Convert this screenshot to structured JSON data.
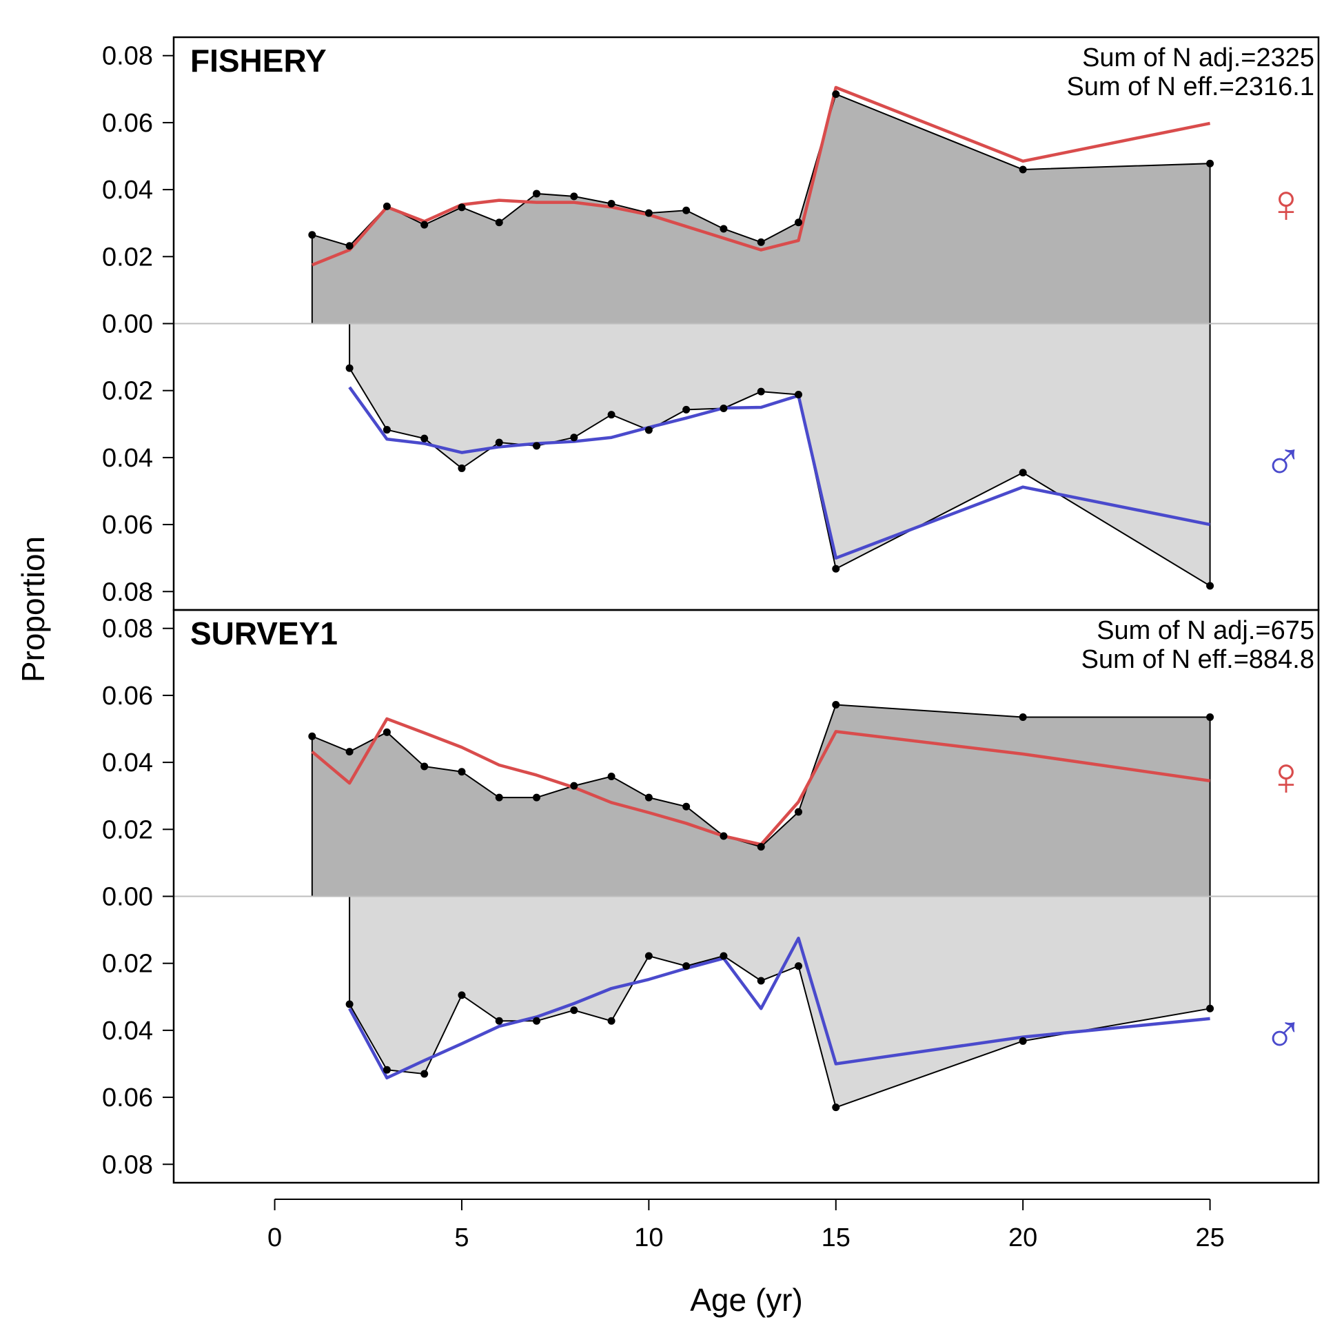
{
  "chart_data": {
    "type": "area",
    "xlabel": "Age (yr)",
    "ylabel": "Proportion",
    "xlim": [
      -2.7,
      27.9
    ],
    "x_ticks": [
      0,
      5,
      10,
      15,
      20,
      25
    ],
    "x_tick_labels": [
      "0",
      "5",
      "10",
      "15",
      "20",
      "25"
    ],
    "ylim": [
      -0.0855,
      0.0855
    ],
    "y_ticks": [
      -0.08,
      -0.06,
      -0.04,
      -0.02,
      0,
      0.02,
      0.04,
      0.06,
      0.08
    ],
    "y_tick_labels": [
      "0.08",
      "0.06",
      "0.04",
      "0.02",
      "0.00",
      "0.02",
      "0.04",
      "0.06",
      "0.08"
    ],
    "grid": false,
    "symbols": {
      "female": "♀",
      "male": "♂"
    },
    "colors": {
      "observed_fill_female": "#b3b3b3",
      "observed_fill_male": "#d9d9d9",
      "observed_line": "#000000",
      "expected_female": "#d94c4c",
      "expected_male": "#4a4acc",
      "zero_line": "#bdbdbd"
    },
    "panels": [
      {
        "title": "FISHERY",
        "annotations": [
          "Sum of N adj.=2325",
          "Sum of N eff.=2316.1"
        ],
        "female": {
          "x": [
            1,
            2,
            3,
            4,
            5,
            6,
            7,
            8,
            9,
            10,
            11,
            12,
            13,
            14,
            15,
            20,
            25
          ],
          "observed": [
            0.0265,
            0.0232,
            0.035,
            0.0295,
            0.0347,
            0.0302,
            0.0388,
            0.038,
            0.0358,
            0.033,
            0.0338,
            0.0283,
            0.0243,
            0.0302,
            0.0685,
            0.046,
            0.0478
          ],
          "expected": [
            0.0175,
            0.022,
            0.0348,
            0.0305,
            0.0355,
            0.0368,
            0.0362,
            0.0362,
            0.0348,
            0.0325,
            0.029,
            0.0255,
            0.022,
            0.0248,
            0.0705,
            0.0485,
            0.0598
          ]
        },
        "male": {
          "x": [
            2,
            3,
            4,
            5,
            6,
            7,
            8,
            9,
            10,
            11,
            12,
            13,
            14,
            15,
            20,
            25
          ],
          "observed": [
            0.0133,
            0.0317,
            0.0343,
            0.0432,
            0.0355,
            0.0365,
            0.034,
            0.0272,
            0.0318,
            0.0257,
            0.0253,
            0.0203,
            0.0212,
            0.0732,
            0.0445,
            0.0783
          ],
          "expected": [
            0.019,
            0.0345,
            0.0358,
            0.0385,
            0.0368,
            0.0358,
            0.0352,
            0.034,
            0.031,
            0.0282,
            0.0252,
            0.025,
            0.0215,
            0.07,
            0.0488,
            0.06
          ]
        }
      },
      {
        "title": "SURVEY1",
        "annotations": [
          "Sum of N adj.=675",
          "Sum of N eff.=884.8"
        ],
        "female": {
          "x": [
            1,
            2,
            3,
            4,
            5,
            6,
            7,
            8,
            9,
            10,
            11,
            12,
            13,
            14,
            15,
            20,
            25
          ],
          "observed": [
            0.0478,
            0.0432,
            0.049,
            0.0388,
            0.0372,
            0.0295,
            0.0295,
            0.033,
            0.0358,
            0.0295,
            0.0268,
            0.018,
            0.0148,
            0.0252,
            0.0572,
            0.0535,
            0.0535
          ],
          "expected": [
            0.0432,
            0.0338,
            0.053,
            0.0488,
            0.0445,
            0.0392,
            0.0362,
            0.0325,
            0.028,
            0.025,
            0.0218,
            0.018,
            0.0155,
            0.0282,
            0.0492,
            0.0425,
            0.0345
          ]
        },
        "male": {
          "x": [
            2,
            3,
            4,
            5,
            6,
            7,
            8,
            9,
            10,
            11,
            12,
            13,
            14,
            15,
            20,
            25
          ],
          "observed": [
            0.0322,
            0.0518,
            0.053,
            0.0295,
            0.0372,
            0.0372,
            0.034,
            0.0372,
            0.0178,
            0.0208,
            0.0178,
            0.0252,
            0.0208,
            0.063,
            0.0432,
            0.0335
          ],
          "expected": [
            0.0335,
            0.0542,
            0.049,
            0.044,
            0.0388,
            0.036,
            0.032,
            0.0275,
            0.0248,
            0.0215,
            0.0185,
            0.0335,
            0.0125,
            0.05,
            0.042,
            0.0365
          ]
        }
      }
    ]
  }
}
